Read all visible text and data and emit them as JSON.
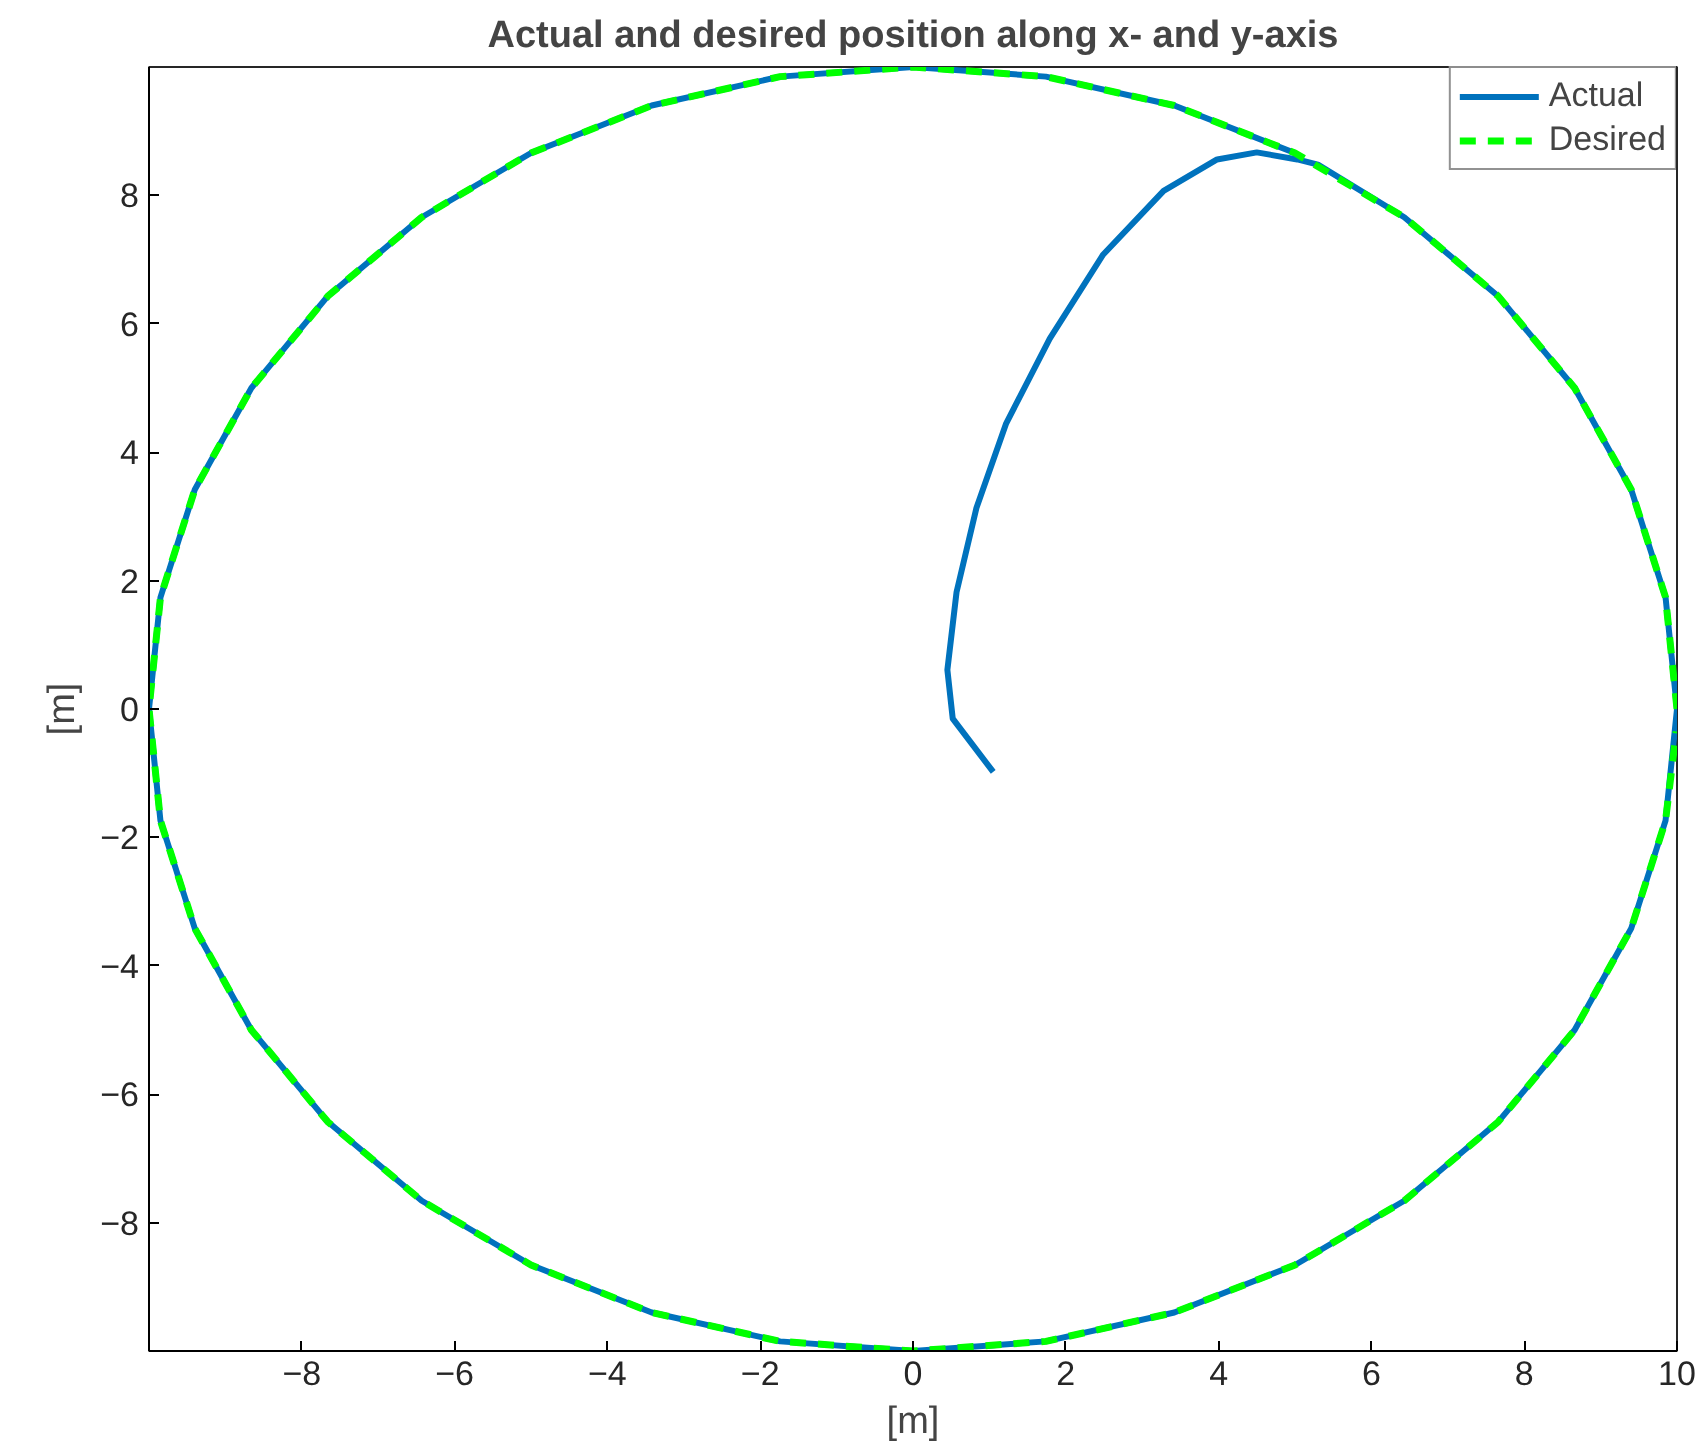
{
  "chart_data": {
    "type": "line",
    "title": "Actual and desired position along x- and y-axis",
    "xlabel": "[m]",
    "ylabel": "[m]",
    "xlim": [
      -10,
      10
    ],
    "ylim": [
      -10,
      10
    ],
    "xticks": [
      -8,
      -6,
      -4,
      -2,
      0,
      2,
      4,
      6,
      8,
      10
    ],
    "yticks": [
      -8,
      -6,
      -4,
      -2,
      0,
      2,
      4,
      6,
      8
    ],
    "grid": false,
    "legend": "top right",
    "series": [
      {
        "name": "Actual",
        "color": "#0072bd",
        "line_style": "solid",
        "x": [
          1.05,
          0.52,
          0.45,
          0.57,
          0.83,
          1.22,
          1.79,
          2.49,
          3.28,
          3.98,
          4.5,
          5.03,
          5.3,
          6.43,
          7.66,
          8.66,
          9.4,
          9.85,
          10,
          9.85,
          9.4,
          8.66,
          7.66,
          6.43,
          5.0,
          3.42,
          1.74,
          0,
          -1.74,
          -3.42,
          -5.0,
          -6.43,
          -7.66,
          -8.66,
          -9.4,
          -9.85,
          -10,
          -9.85,
          -9.4,
          -8.66,
          -7.66,
          -6.43,
          -5.0,
          -3.42,
          -1.74,
          0,
          1.74,
          3.42,
          5.0
        ],
        "values": [
          -0.98,
          -0.15,
          0.61,
          1.82,
          3.13,
          4.45,
          5.77,
          7.08,
          8.07,
          8.56,
          8.67,
          8.56,
          8.48,
          7.66,
          6.43,
          5.0,
          3.42,
          1.74,
          0,
          -1.74,
          -3.42,
          -5.0,
          -6.43,
          -7.66,
          -8.66,
          -9.4,
          -9.85,
          -10,
          -9.85,
          -9.4,
          -8.66,
          -7.66,
          -6.43,
          -5.0,
          -3.42,
          -1.74,
          0,
          1.74,
          3.42,
          5.0,
          6.43,
          7.66,
          8.66,
          9.4,
          9.85,
          10,
          9.85,
          9.4,
          8.66
        ]
      },
      {
        "name": "Desired",
        "color": "#00ff00",
        "line_style": "dashed",
        "x": [
          10,
          9.85,
          9.4,
          8.66,
          7.66,
          6.43,
          5.0,
          3.42,
          1.74,
          0,
          -1.74,
          -3.42,
          -5.0,
          -6.43,
          -7.66,
          -8.66,
          -9.4,
          -9.85,
          -10,
          -9.85,
          -9.4,
          -8.66,
          -7.66,
          -6.43,
          -5.0,
          -3.42,
          -1.74,
          0,
          1.74,
          3.42,
          5.0,
          6.43,
          7.66,
          8.66,
          9.4,
          9.85,
          9.99
        ],
        "values": [
          0,
          1.74,
          3.42,
          5.0,
          6.43,
          7.66,
          8.66,
          9.4,
          9.85,
          10,
          9.85,
          9.4,
          8.66,
          7.66,
          6.43,
          5.0,
          3.42,
          1.74,
          0,
          -1.74,
          -3.42,
          -5.0,
          -6.43,
          -7.66,
          -8.66,
          -9.4,
          -9.85,
          -10,
          -9.85,
          -9.4,
          -8.66,
          -7.66,
          -6.43,
          -5.0,
          -3.42,
          -1.74,
          -0.35
        ]
      }
    ]
  }
}
